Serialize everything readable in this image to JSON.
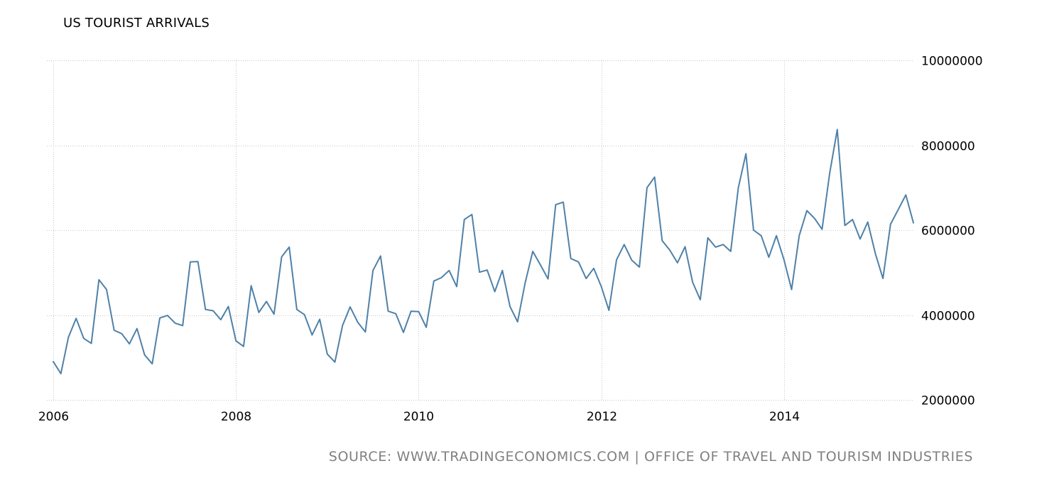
{
  "chart_data": {
    "type": "line",
    "title": "US TOURIST ARRIVALS",
    "source": "SOURCE: WWW.TRADINGECONOMICS.COM | OFFICE OF TRAVEL AND TOURISM INDUSTRIES",
    "x_ticks": [
      "2006",
      "2008",
      "2010",
      "2012",
      "2014"
    ],
    "y_ticks": [
      "2000000",
      "4000000",
      "6000000",
      "8000000",
      "10000000"
    ],
    "xlim": [
      "2006-01",
      "2015-08"
    ],
    "ylim": [
      2000000,
      10000000
    ],
    "grid": true,
    "line_color": "#4f81a8",
    "series": [
      {
        "x": [
          "2006-01",
          "2006-02",
          "2006-03",
          "2006-04",
          "2006-05",
          "2006-06",
          "2006-07",
          "2006-08",
          "2006-09",
          "2006-10",
          "2006-11",
          "2006-12",
          "2007-01",
          "2007-02",
          "2007-03",
          "2007-04",
          "2007-05",
          "2007-06",
          "2007-07",
          "2007-08",
          "2007-09",
          "2007-10",
          "2007-11",
          "2007-12",
          "2008-01",
          "2008-02",
          "2008-03",
          "2008-04",
          "2008-05",
          "2008-06",
          "2008-07",
          "2008-08",
          "2008-09",
          "2008-10",
          "2008-11",
          "2008-12",
          "2009-01",
          "2009-02",
          "2009-03",
          "2009-04",
          "2009-05",
          "2009-06",
          "2009-07",
          "2009-08",
          "2009-09",
          "2009-10",
          "2009-11",
          "2009-12",
          "2010-01",
          "2010-02",
          "2010-03",
          "2010-04",
          "2010-05",
          "2010-06",
          "2010-07",
          "2010-08",
          "2010-09",
          "2010-10",
          "2010-11",
          "2010-12",
          "2011-01",
          "2011-02",
          "2011-03",
          "2011-04",
          "2011-05",
          "2011-06",
          "2011-07",
          "2011-08",
          "2011-09",
          "2011-10",
          "2011-11",
          "2011-12",
          "2012-01",
          "2012-02",
          "2012-03",
          "2012-04",
          "2012-05",
          "2012-06",
          "2012-07",
          "2012-08",
          "2012-09",
          "2012-10",
          "2012-11",
          "2012-12",
          "2013-01",
          "2013-02",
          "2013-03",
          "2013-04",
          "2013-05",
          "2013-06",
          "2013-07",
          "2013-08",
          "2013-09",
          "2013-10",
          "2013-11",
          "2013-12",
          "2014-01",
          "2014-02",
          "2014-03",
          "2014-04",
          "2014-05",
          "2014-06",
          "2014-07",
          "2014-08",
          "2014-09",
          "2014-10",
          "2014-11",
          "2014-12",
          "2015-01",
          "2015-02",
          "2015-03",
          "2015-04",
          "2015-05",
          "2015-06"
        ],
        "values": [
          2900000,
          2620000,
          3480000,
          3920000,
          3450000,
          3330000,
          4830000,
          4600000,
          3640000,
          3560000,
          3320000,
          3680000,
          3060000,
          2850000,
          3930000,
          3990000,
          3810000,
          3750000,
          5250000,
          5260000,
          4130000,
          4100000,
          3890000,
          4200000,
          3390000,
          3260000,
          4690000,
          4060000,
          4320000,
          4020000,
          5370000,
          5600000,
          4130000,
          4010000,
          3530000,
          3900000,
          3080000,
          2890000,
          3750000,
          4190000,
          3830000,
          3600000,
          5050000,
          5390000,
          4090000,
          4030000,
          3590000,
          4090000,
          4080000,
          3710000,
          4800000,
          4880000,
          5050000,
          4670000,
          6250000,
          6370000,
          5010000,
          5060000,
          4550000,
          5050000,
          4200000,
          3840000,
          4760000,
          5500000,
          5180000,
          4850000,
          6600000,
          6660000,
          5330000,
          5250000,
          4860000,
          5100000,
          4670000,
          4110000,
          5300000,
          5660000,
          5290000,
          5130000,
          7000000,
          7250000,
          5750000,
          5530000,
          5230000,
          5610000,
          4770000,
          4360000,
          5820000,
          5600000,
          5660000,
          5500000,
          7000000,
          7800000,
          6000000,
          5870000,
          5360000,
          5870000,
          5300000,
          4600000,
          5870000,
          6460000,
          6280000,
          6020000,
          7340000,
          8370000,
          6110000,
          6250000,
          5790000,
          6190000,
          5450000,
          4860000,
          6140000,
          6480000,
          6830000,
          6170000
        ]
      }
    ]
  }
}
